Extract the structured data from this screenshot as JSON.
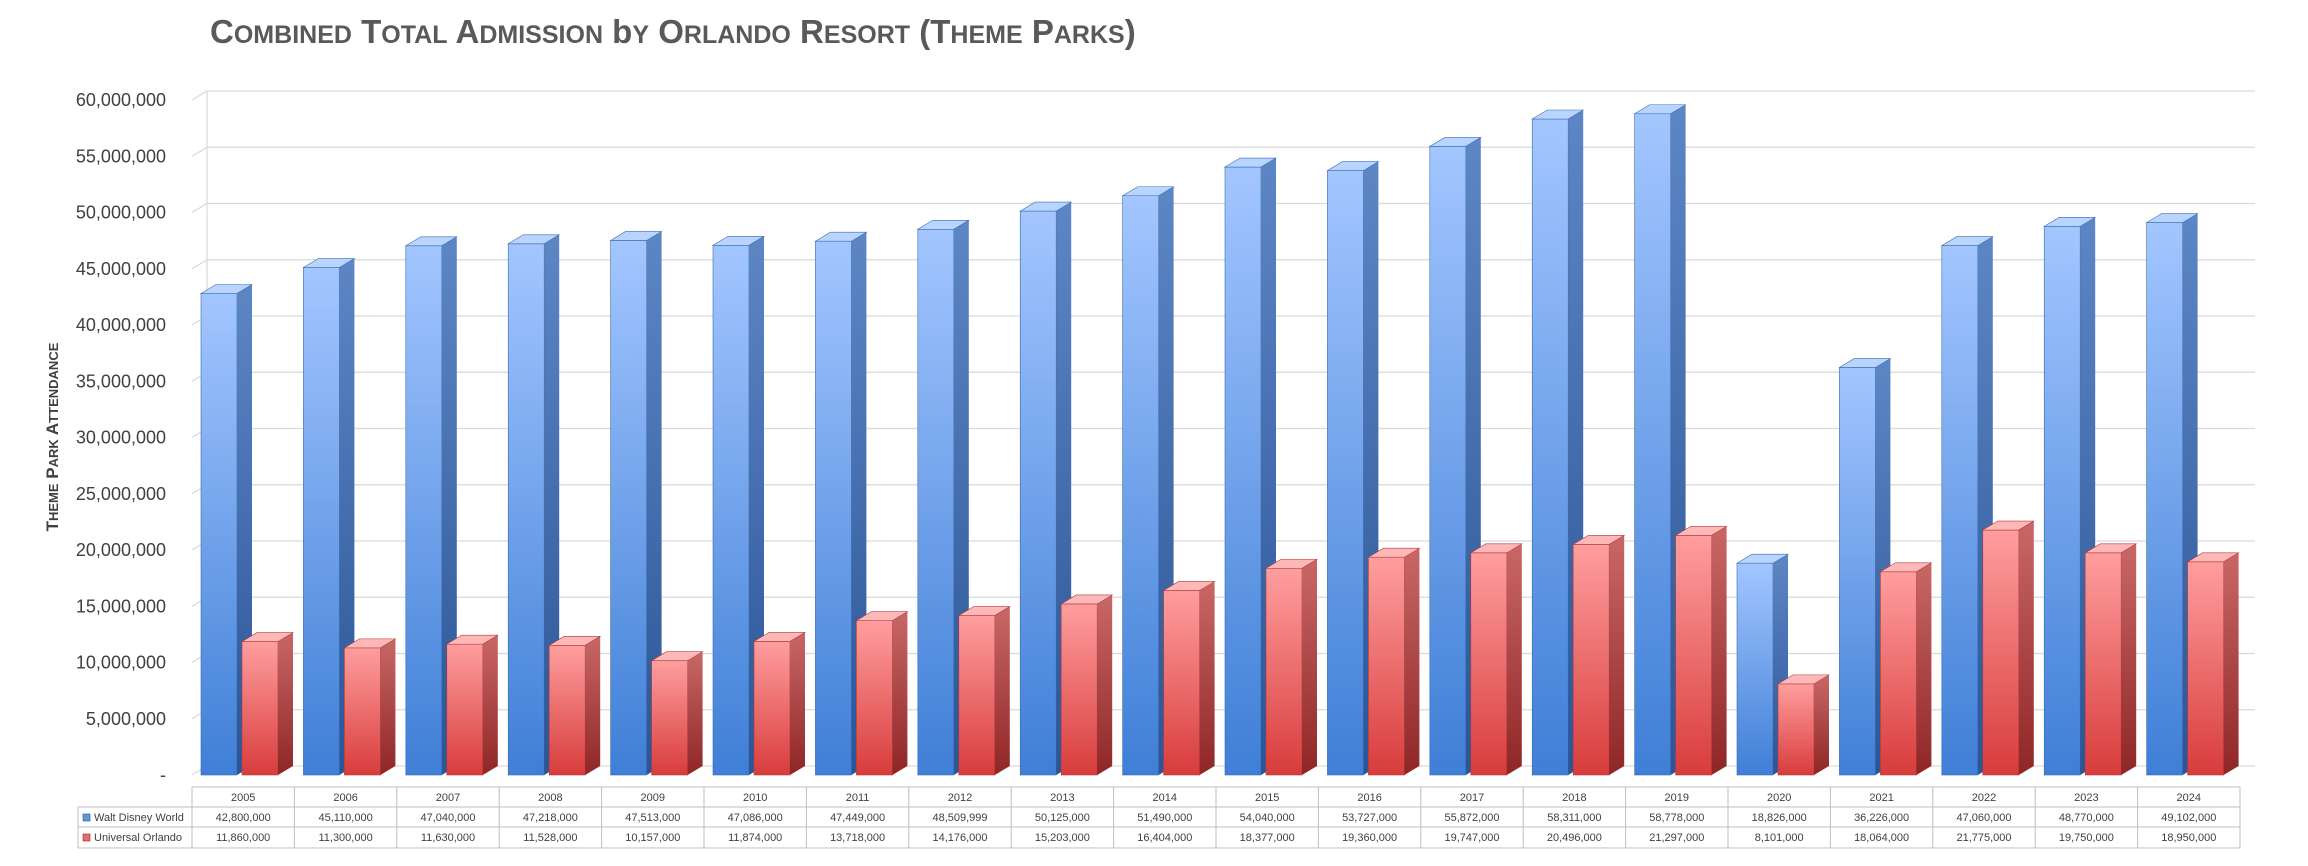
{
  "chart_data": {
    "type": "bar",
    "title": "Combined Total Admission by Orlando Resort (Theme Parks)",
    "ylabel": "Theme Park Attendance",
    "xlabel": "",
    "ylim": [
      0,
      60000000
    ],
    "y_tick_labels": [
      "-",
      "5,000,000",
      "10,000,000",
      "15,000,000",
      "20,000,000",
      "25,000,000",
      "30,000,000",
      "35,000,000",
      "40,000,000",
      "45,000,000",
      "50,000,000",
      "55,000,000",
      "60,000,000"
    ],
    "grid": true,
    "legend": "data-table",
    "categories": [
      "2005",
      "2006",
      "2007",
      "2008",
      "2009",
      "2010",
      "2011",
      "2012",
      "2013",
      "2014",
      "2015",
      "2016",
      "2017",
      "2018",
      "2019",
      "2020",
      "2021",
      "2022",
      "2023",
      "2024"
    ],
    "series": [
      {
        "name": "Walt Disney World",
        "color": "#5b9bd5",
        "values": [
          42800000,
          45110000,
          47040000,
          47218000,
          47513000,
          47086000,
          47449000,
          48509999,
          50125000,
          51490000,
          54040000,
          53727000,
          55872000,
          58311000,
          58778000,
          18826000,
          36226000,
          47060000,
          48770000,
          49102000
        ],
        "labels": [
          "42,800,000",
          "45,110,000",
          "47,040,000",
          "47,218,000",
          "47,513,000",
          "47,086,000",
          "47,449,000",
          "48,509,999",
          "50,125,000",
          "51,490,000",
          "54,040,000",
          "53,727,000",
          "55,872,000",
          "58,311,000",
          "58,778,000",
          "18,826,000",
          "36,226,000",
          "47,060,000",
          "48,770,000",
          "49,102,000"
        ]
      },
      {
        "name": "Universal Orlando",
        "color": "#e86b6b",
        "values": [
          11860000,
          11300000,
          11630000,
          11528000,
          10157000,
          11874000,
          13718000,
          14176000,
          15203000,
          16404000,
          18377000,
          19360000,
          19747000,
          20496000,
          21297000,
          8101000,
          18064000,
          21775000,
          19750000,
          18950000
        ],
        "labels": [
          "11,860,000",
          "11,300,000",
          "11,630,000",
          "11,528,000",
          "10,157,000",
          "11,874,000",
          "13,718,000",
          "14,176,000",
          "15,203,000",
          "16,404,000",
          "18,377,000",
          "19,360,000",
          "19,747,000",
          "20,496,000",
          "21,297,000",
          "8,101,000",
          "18,064,000",
          "21,775,000",
          "19,750,000",
          "18,950,000"
        ]
      }
    ]
  }
}
